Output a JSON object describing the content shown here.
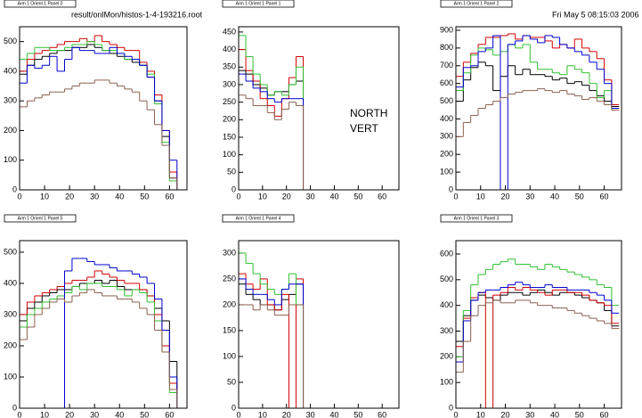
{
  "header": {
    "file": "result/onlMon/histos-1-4-193216.root",
    "date": "Fri May  5 08:15:03 2006"
  },
  "chart_data": [
    {
      "type": "histogram",
      "title": "Arm 1 Orient 1 Panel 0",
      "bins": [
        0,
        3,
        6,
        9,
        12,
        15,
        18,
        21,
        24,
        27,
        30,
        33,
        36,
        39,
        42,
        45,
        48,
        51,
        54,
        57,
        60,
        63,
        66
      ],
      "xlim": [
        0,
        67
      ],
      "xticks": [
        0,
        10,
        20,
        30,
        40,
        50,
        60
      ],
      "ylim": [
        0,
        550
      ],
      "yticks": [
        0,
        100,
        200,
        300,
        400,
        500
      ],
      "series": [
        {
          "color": "#000000",
          "values": [
            390,
            420,
            440,
            450,
            460,
            470,
            470,
            480,
            480,
            490,
            480,
            470,
            460,
            450,
            440,
            430,
            420,
            380,
            300,
            180,
            40,
            0
          ]
        },
        {
          "color": "#d00000",
          "values": [
            400,
            440,
            460,
            470,
            480,
            490,
            500,
            500,
            510,
            500,
            520,
            500,
            490,
            480,
            470,
            470,
            430,
            400,
            320,
            200,
            60,
            0
          ]
        },
        {
          "color": "#30c030",
          "values": [
            440,
            460,
            480,
            480,
            470,
            470,
            480,
            490,
            490,
            500,
            490,
            470,
            470,
            460,
            440,
            440,
            420,
            390,
            290,
            160,
            30,
            0
          ]
        },
        {
          "color": "#0000d0",
          "values": [
            360,
            420,
            410,
            420,
            450,
            400,
            440,
            480,
            470,
            470,
            460,
            460,
            480,
            460,
            450,
            440,
            420,
            380,
            300,
            200,
            100,
            0
          ]
        },
        {
          "color": "#8b6050",
          "values": [
            280,
            300,
            310,
            320,
            330,
            330,
            340,
            350,
            360,
            360,
            370,
            370,
            360,
            350,
            340,
            330,
            300,
            270,
            220,
            150,
            40,
            0
          ]
        }
      ]
    },
    {
      "type": "histogram",
      "title": "Arm 1 Orient 1 Panel 1",
      "annotations": [
        "NORTH",
        "VERT"
      ],
      "bins": [
        0,
        3,
        6,
        9,
        12,
        15,
        18,
        21,
        24,
        27,
        30,
        33,
        36,
        39,
        42,
        45,
        48,
        51,
        54,
        57,
        60,
        63,
        66
      ],
      "xlim": [
        0,
        67
      ],
      "xticks": [
        0,
        10,
        20,
        30,
        40,
        50,
        60
      ],
      "ylim": [
        0,
        465
      ],
      "yticks": [
        0,
        50,
        100,
        150,
        200,
        250,
        300,
        350,
        400,
        450
      ],
      "series": [
        {
          "color": "#000000",
          "values": [
            340,
            330,
            300,
            290,
            270,
            280,
            280,
            300,
            310,
            0,
            0,
            0,
            0,
            0,
            0,
            0,
            0,
            0,
            0,
            0,
            0,
            0
          ]
        },
        {
          "color": "#d00000",
          "values": [
            400,
            340,
            310,
            260,
            240,
            210,
            260,
            320,
            380,
            0,
            0,
            0,
            0,
            0,
            0,
            0,
            0,
            0,
            0,
            0,
            0,
            0
          ]
        },
        {
          "color": "#30c030",
          "values": [
            440,
            380,
            330,
            300,
            270,
            280,
            270,
            300,
            350,
            0,
            0,
            0,
            0,
            0,
            0,
            0,
            0,
            0,
            0,
            0,
            0,
            0
          ]
        },
        {
          "color": "#0000d0",
          "values": [
            330,
            310,
            290,
            280,
            260,
            250,
            260,
            260,
            260,
            0,
            0,
            0,
            0,
            0,
            0,
            0,
            0,
            0,
            0,
            0,
            0,
            0
          ]
        },
        {
          "color": "#8b6050",
          "values": [
            270,
            260,
            240,
            240,
            220,
            200,
            230,
            250,
            240,
            0,
            0,
            0,
            0,
            0,
            0,
            0,
            0,
            0,
            0,
            0,
            0,
            0
          ]
        }
      ]
    },
    {
      "type": "histogram",
      "title": "Arm 1 Orient 1 Panel 2",
      "bins": [
        0,
        3,
        6,
        9,
        12,
        15,
        18,
        21,
        24,
        27,
        30,
        33,
        36,
        39,
        42,
        45,
        48,
        51,
        54,
        57,
        60,
        63,
        66
      ],
      "xlim": [
        0,
        67
      ],
      "xticks": [
        0,
        10,
        20,
        30,
        40,
        50,
        60
      ],
      "ylim": [
        0,
        920
      ],
      "yticks": [
        0,
        100,
        200,
        300,
        400,
        500,
        600,
        700,
        800,
        900
      ],
      "series": [
        {
          "color": "#000000",
          "values": [
            500,
            620,
            690,
            720,
            700,
            560,
            640,
            700,
            650,
            680,
            650,
            650,
            640,
            620,
            630,
            600,
            610,
            590,
            560,
            530,
            500,
            470
          ]
        },
        {
          "color": "#d00000",
          "values": [
            640,
            720,
            770,
            820,
            860,
            860,
            870,
            880,
            850,
            870,
            860,
            860,
            840,
            800,
            820,
            800,
            850,
            800,
            780,
            740,
            620,
            480
          ]
        },
        {
          "color": "#30c030",
          "values": [
            560,
            660,
            760,
            800,
            790,
            760,
            780,
            820,
            800,
            820,
            720,
            680,
            680,
            660,
            650,
            700,
            680,
            660,
            600,
            520,
            560,
            450
          ]
        },
        {
          "color": "#0000d0",
          "values": [
            580,
            690,
            700,
            780,
            800,
            870,
            0,
            820,
            840,
            870,
            850,
            830,
            870,
            860,
            820,
            800,
            780,
            760,
            720,
            680,
            600,
            460
          ]
        },
        {
          "color": "#8b6050",
          "values": [
            300,
            380,
            420,
            460,
            480,
            500,
            520,
            540,
            550,
            560,
            560,
            570,
            560,
            550,
            560,
            540,
            530,
            510,
            520,
            500,
            480,
            450
          ]
        }
      ]
    },
    {
      "type": "histogram",
      "title": "Arm 1 Orient 1 Panel 5",
      "bins": [
        0,
        3,
        6,
        9,
        12,
        15,
        18,
        21,
        24,
        27,
        30,
        33,
        36,
        39,
        42,
        45,
        48,
        51,
        54,
        57,
        60,
        63,
        66
      ],
      "xlim": [
        0,
        67
      ],
      "xticks": [
        0,
        10,
        20,
        30,
        40,
        50,
        60
      ],
      "ylim": [
        0,
        537
      ],
      "yticks": [
        0,
        100,
        200,
        300,
        400,
        500
      ],
      "series": [
        {
          "color": "#000000",
          "values": [
            280,
            320,
            340,
            360,
            370,
            380,
            380,
            390,
            400,
            400,
            410,
            400,
            410,
            390,
            380,
            380,
            380,
            360,
            320,
            280,
            150,
            0
          ]
        },
        {
          "color": "#d00000",
          "values": [
            300,
            340,
            360,
            370,
            380,
            390,
            400,
            410,
            410,
            420,
            440,
            430,
            420,
            410,
            400,
            400,
            380,
            360,
            300,
            200,
            80,
            0
          ]
        },
        {
          "color": "#30c030",
          "values": [
            260,
            300,
            320,
            340,
            350,
            360,
            370,
            390,
            380,
            400,
            400,
            390,
            390,
            380,
            360,
            380,
            370,
            340,
            280,
            180,
            50,
            0
          ]
        },
        {
          "color": "#0000d0",
          "values": [
            0,
            0,
            0,
            0,
            0,
            0,
            440,
            480,
            480,
            470,
            460,
            460,
            450,
            440,
            440,
            430,
            420,
            400,
            350,
            250,
            100,
            0
          ]
        },
        {
          "color": "#8b6050",
          "values": [
            220,
            260,
            300,
            320,
            340,
            350,
            340,
            360,
            370,
            380,
            370,
            360,
            360,
            350,
            350,
            340,
            320,
            300,
            250,
            180,
            60,
            0
          ]
        }
      ]
    },
    {
      "type": "histogram",
      "title": "Arm 1 Orient 1 Panel 4",
      "bins": [
        0,
        3,
        6,
        9,
        12,
        15,
        18,
        21,
        24,
        27,
        30,
        33,
        36,
        39,
        42,
        45,
        48,
        51,
        54,
        57,
        60,
        63,
        66
      ],
      "xlim": [
        0,
        67
      ],
      "xticks": [
        0,
        10,
        20,
        30,
        40,
        50,
        60
      ],
      "ylim": [
        0,
        324
      ],
      "yticks": [
        0,
        50,
        100,
        150,
        200,
        250,
        300
      ],
      "series": [
        {
          "color": "#000000",
          "values": [
            240,
            220,
            210,
            200,
            200,
            190,
            210,
            220,
            240,
            0,
            0,
            0,
            0,
            0,
            0,
            0,
            0,
            0,
            0,
            0,
            0,
            0
          ]
        },
        {
          "color": "#d00000",
          "values": [
            260,
            240,
            230,
            250,
            200,
            190,
            220,
            0,
            250,
            0,
            0,
            0,
            0,
            0,
            0,
            0,
            0,
            0,
            0,
            0,
            0,
            0
          ]
        },
        {
          "color": "#30c030",
          "values": [
            300,
            280,
            260,
            240,
            230,
            220,
            230,
            260,
            200,
            0,
            0,
            0,
            0,
            0,
            0,
            0,
            0,
            0,
            0,
            0,
            0,
            0
          ]
        },
        {
          "color": "#0000d0",
          "values": [
            250,
            230,
            220,
            220,
            210,
            200,
            230,
            240,
            240,
            0,
            0,
            0,
            0,
            0,
            0,
            0,
            0,
            0,
            0,
            0,
            0,
            0
          ]
        },
        {
          "color": "#8b6050",
          "values": [
            200,
            200,
            190,
            200,
            190,
            180,
            180,
            200,
            200,
            0,
            0,
            0,
            0,
            0,
            0,
            0,
            0,
            0,
            0,
            0,
            0,
            0
          ]
        }
      ]
    },
    {
      "type": "histogram",
      "title": "Arm 1 Orient 1 Panel 3",
      "bins": [
        0,
        3,
        6,
        9,
        12,
        15,
        18,
        21,
        24,
        27,
        30,
        33,
        36,
        39,
        42,
        45,
        48,
        51,
        54,
        57,
        60,
        63,
        66
      ],
      "xlim": [
        0,
        67
      ],
      "xticks": [
        0,
        10,
        20,
        30,
        40,
        50,
        60
      ],
      "ylim": [
        0,
        652
      ],
      "yticks": [
        0,
        100,
        200,
        300,
        400,
        500,
        600
      ],
      "series": [
        {
          "color": "#000000",
          "values": [
            260,
            360,
            420,
            440,
            430,
            420,
            440,
            450,
            450,
            440,
            450,
            460,
            450,
            440,
            450,
            450,
            440,
            430,
            420,
            410,
            380,
            320
          ]
        },
        {
          "color": "#d00000",
          "values": [
            240,
            350,
            430,
            450,
            0,
            440,
            450,
            470,
            460,
            470,
            460,
            450,
            440,
            460,
            460,
            450,
            450,
            440,
            420,
            410,
            400,
            330
          ]
        },
        {
          "color": "#30c030",
          "values": [
            200,
            380,
            480,
            520,
            540,
            560,
            570,
            580,
            560,
            560,
            550,
            540,
            560,
            550,
            540,
            530,
            520,
            510,
            500,
            480,
            470,
            400
          ]
        },
        {
          "color": "#0000d0",
          "values": [
            180,
            340,
            420,
            450,
            460,
            460,
            470,
            480,
            490,
            480,
            470,
            470,
            480,
            470,
            470,
            460,
            460,
            460,
            450,
            440,
            420,
            370
          ]
        },
        {
          "color": "#8b6050",
          "values": [
            140,
            260,
            360,
            400,
            410,
            420,
            410,
            410,
            420,
            420,
            410,
            400,
            400,
            390,
            390,
            380,
            370,
            360,
            350,
            340,
            330,
            310
          ]
        }
      ]
    }
  ]
}
